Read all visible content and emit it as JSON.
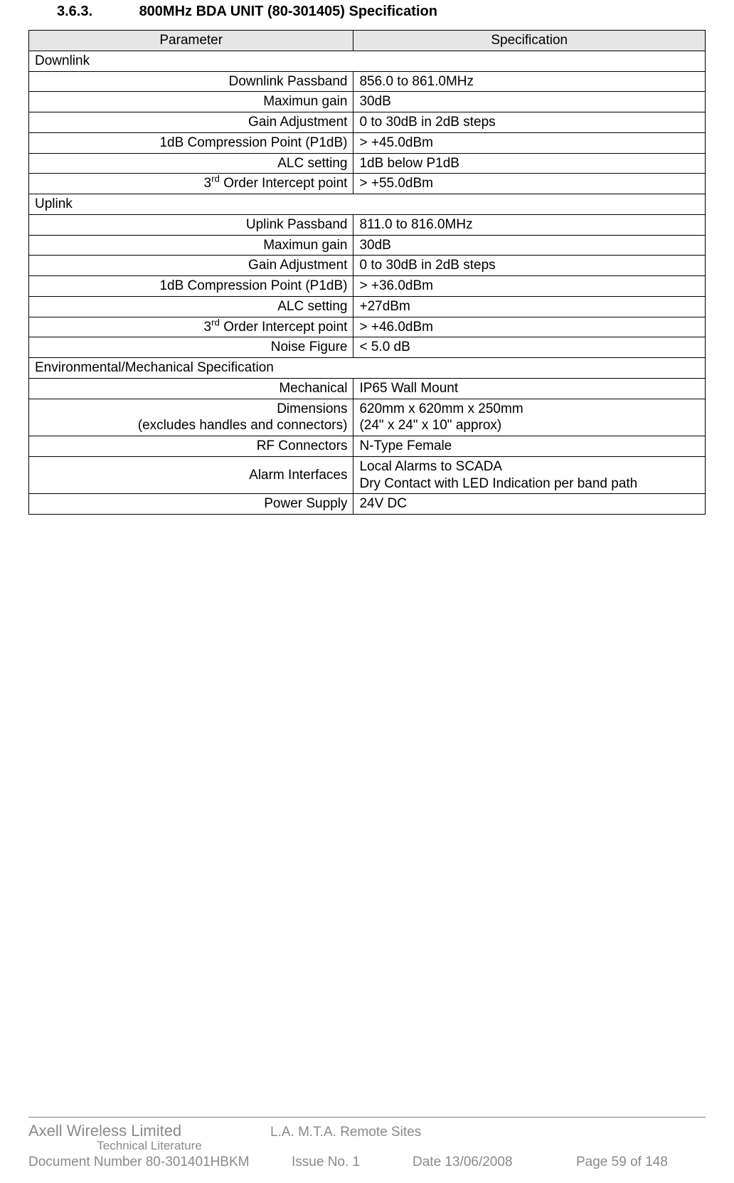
{
  "heading": {
    "number": "3.6.3.",
    "title": "800MHz BDA UNIT (80-301405) Specification"
  },
  "table": {
    "headers": [
      "Parameter",
      "Specification"
    ],
    "sections": [
      {
        "title": "Downlink",
        "rows": [
          {
            "param": "Downlink Passband",
            "value": "856.0 to 861.0MHz"
          },
          {
            "param": "Maximun gain",
            "value": "30dB"
          },
          {
            "param": "Gain Adjustment",
            "value": "0 to 30dB in 2dB steps"
          },
          {
            "param": "1dB Compression Point (P1dB)",
            "value": "> +45.0dBm"
          },
          {
            "param": "ALC setting",
            "value": "1dB below P1dB"
          },
          {
            "param_html": "3<sup>rd</sup> Order Intercept point",
            "value": "> +55.0dBm"
          }
        ]
      },
      {
        "title": "Uplink",
        "rows": [
          {
            "param": "Uplink Passband",
            "value": "811.0 to 816.0MHz"
          },
          {
            "param": "Maximun gain",
            "value": "30dB"
          },
          {
            "param": "Gain Adjustment",
            "value": "0 to 30dB in 2dB steps"
          },
          {
            "param": "1dB Compression Point (P1dB)",
            "value": "> +36.0dBm"
          },
          {
            "param": "ALC setting",
            "value": "+27dBm"
          },
          {
            "param_html": "3<sup>rd</sup> Order Intercept point",
            "value": "> +46.0dBm"
          },
          {
            "param": "Noise Figure",
            "value": "< 5.0 dB"
          }
        ]
      },
      {
        "title": "Environmental/Mechanical Specification",
        "rows": [
          {
            "param": "Mechanical",
            "value": "IP65 Wall Mount"
          },
          {
            "param_html": "Dimensions<br>(excludes handles and connectors)",
            "value_html": "620mm x 620mm x 250mm<br>(24\" x 24\" x 10\" approx)"
          },
          {
            "param": "RF Connectors",
            "value": "N-Type Female"
          },
          {
            "param": "Alarm Interfaces",
            "value_html": "Local Alarms to SCADA<br>Dry Contact with LED Indication per band path"
          },
          {
            "param": "Power Supply",
            "value": "24V DC"
          }
        ]
      }
    ]
  },
  "footer": {
    "company": "Axell Wireless Limited",
    "techlit": "Technical Literature",
    "remote": "L.A. M.T.A. Remote Sites",
    "docnum": "Document Number 80-301401HBKM",
    "issue": "Issue No. 1",
    "date": "Date 13/06/2008",
    "page": "Page 59 of 148"
  }
}
